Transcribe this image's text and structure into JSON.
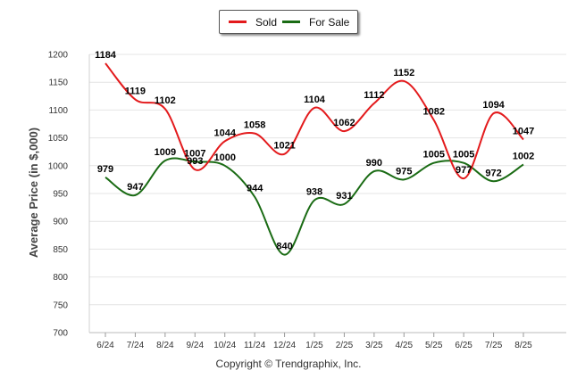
{
  "chart_data": {
    "type": "line",
    "categories": [
      "6/24",
      "7/24",
      "8/24",
      "9/24",
      "10/24",
      "11/24",
      "12/24",
      "1/25",
      "2/25",
      "3/25",
      "4/25",
      "5/25",
      "6/25",
      "7/25",
      "8/25"
    ],
    "series": [
      {
        "name": "Sold",
        "color": "#e31a1c",
        "values": [
          1184,
          1119,
          1102,
          993,
          1044,
          1058,
          1021,
          1104,
          1062,
          1112,
          1152,
          1082,
          977,
          1094,
          1047
        ]
      },
      {
        "name": "For Sale",
        "color": "#1a6b14",
        "values": [
          979,
          947,
          1009,
          1007,
          1000,
          944,
          840,
          938,
          931,
          990,
          975,
          1005,
          1005,
          972,
          1002
        ]
      }
    ],
    "ylabel": "Average Price (in $,000)",
    "xlabel": "",
    "ylim": [
      700,
      1200
    ],
    "yticks": [
      700,
      750,
      800,
      850,
      900,
      950,
      1000,
      1050,
      1100,
      1150,
      1200
    ],
    "grid": true,
    "legend_position": "top-center",
    "smooth": true
  },
  "footer": {
    "copyright": "Copyright © Trendgraphix, Inc."
  }
}
